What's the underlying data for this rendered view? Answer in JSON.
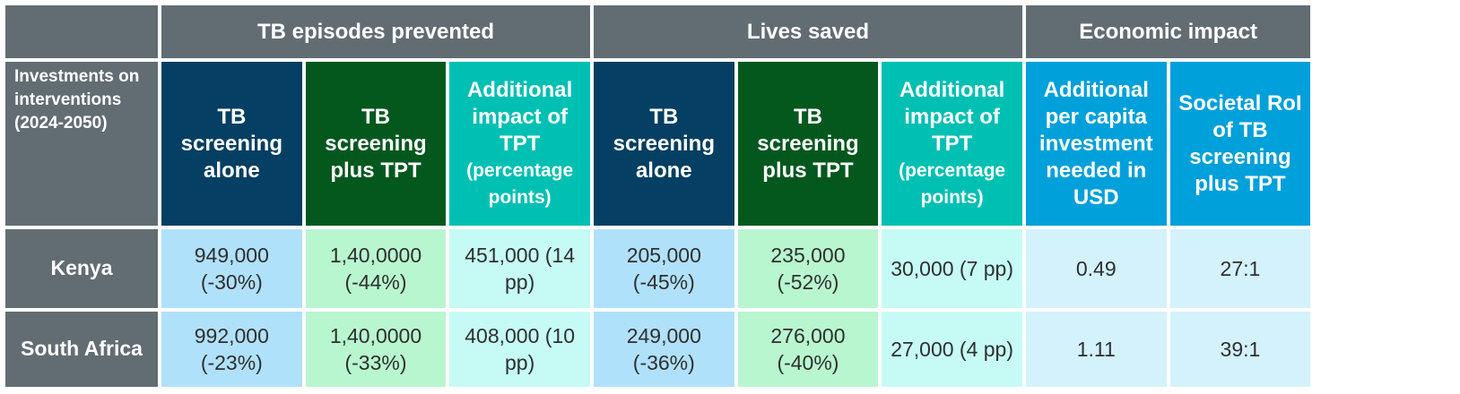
{
  "groups": {
    "tb_episodes": "TB episodes prevented",
    "lives_saved": "Lives saved",
    "economic": "Economic impact"
  },
  "row_header": "Investments on interventions (2024-2050)",
  "columns": {
    "ep_screen": "TB screening alone",
    "ep_plus": "TB screening plus TPT",
    "ep_add": "Additional impact of TPT",
    "ep_add_pp": "(percentage points)",
    "ls_screen": "TB screening alone",
    "ls_plus": "TB screening plus TPT",
    "ls_add": "Additional impact of TPT",
    "ls_add_pp": "(percentage points)",
    "econ_invest": "Additional per capita investment needed in USD",
    "econ_roi": "Societal RoI of TB screening plus TPT"
  },
  "rows": [
    {
      "country": "Kenya",
      "ep_screen": "949,000 (-30%)",
      "ep_plus": "1,40,0000 (-44%)",
      "ep_add": "451,000 (14 pp)",
      "ls_screen": "205,000 (-45%)",
      "ls_plus": "235,000 (-52%)",
      "ls_add": "30,000 (7 pp)",
      "econ_invest": "0.49",
      "econ_roi": "27:1"
    },
    {
      "country": "South Africa",
      "ep_screen": "992,000 (-23%)",
      "ep_plus": "1,40,0000 (-33%)",
      "ep_add": "408,000 (10 pp)",
      "ls_screen": "249,000 (-36%)",
      "ls_plus": "276,000 (-40%)",
      "ls_add": "27,000 (4 pp)",
      "econ_invest": "1.11",
      "econ_roi": "39:1"
    }
  ],
  "colors": {
    "header_gray": "#626d73",
    "navy": "#053f63",
    "dark_green": "#04581e",
    "teal": "#00c0b3",
    "blue": "#00a0db",
    "cell_blue": "#b0e1fa",
    "cell_green": "#b8f6d0",
    "cell_cyan": "#c6fbf5",
    "cell_pale": "#d3f2fb"
  }
}
